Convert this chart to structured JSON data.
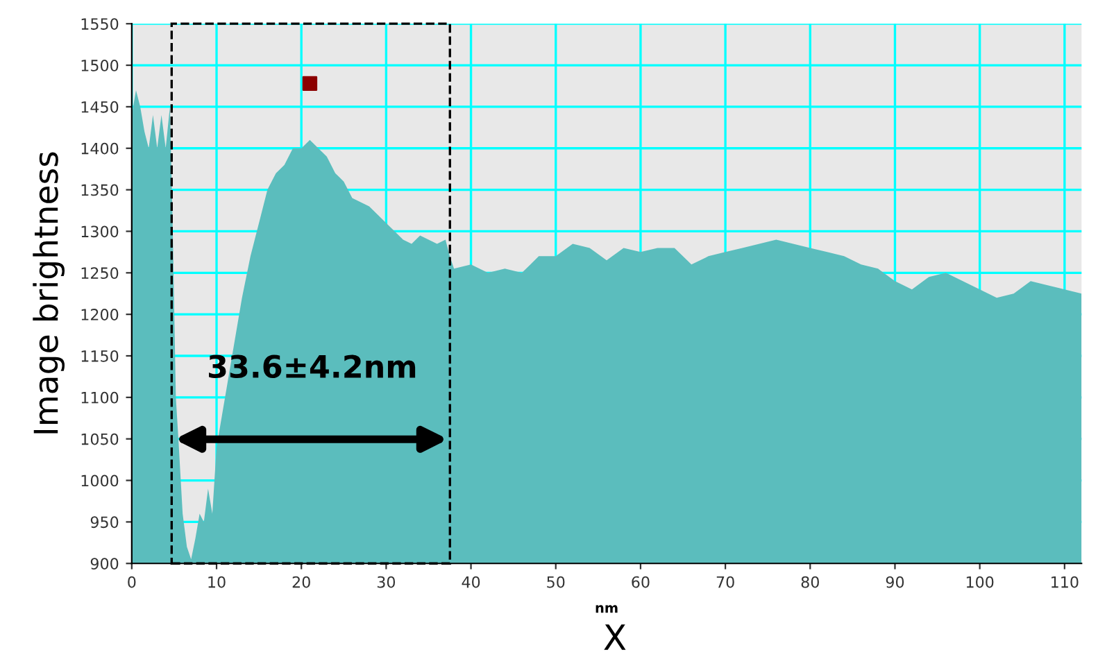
{
  "chart_data": {
    "type": "area",
    "ylabel": "Image brightness",
    "xlabel": "nm",
    "xlim": [
      0,
      112
    ],
    "xticks": [
      0,
      10,
      20,
      30,
      40,
      50,
      60,
      70,
      80,
      90,
      100,
      110
    ],
    "ylim": [
      900,
      1550
    ],
    "yticks": [
      900,
      950,
      1000,
      1050,
      1100,
      1150,
      1200,
      1250,
      1300,
      1350,
      1400,
      1450,
      1500,
      1550
    ],
    "grid": true,
    "series": [
      {
        "color": "#5bbdbd",
        "x": [
          0,
          0.5,
          1,
          1.5,
          2,
          2.5,
          3,
          3.5,
          4,
          4.5,
          4.8,
          5.2,
          5.5,
          6,
          6.5,
          7,
          7.5,
          8,
          8.5,
          9,
          9.5,
          10,
          11,
          12,
          13,
          14,
          15,
          16,
          17,
          18,
          19,
          20,
          21,
          22,
          23,
          24,
          25,
          26,
          27,
          28,
          29,
          30,
          31,
          32,
          33,
          34,
          35,
          36,
          37,
          37.5,
          38,
          40,
          42,
          44,
          46,
          48,
          50,
          52,
          54,
          56,
          58,
          60,
          62,
          64,
          66,
          68,
          70,
          72,
          74,
          76,
          78,
          80,
          82,
          84,
          86,
          88,
          90,
          92,
          94,
          96,
          98,
          100,
          102,
          104,
          106,
          108,
          110,
          112
        ],
        "values": [
          1440,
          1470,
          1450,
          1420,
          1400,
          1440,
          1400,
          1440,
          1400,
          1450,
          1320,
          1100,
          1050,
          960,
          920,
          905,
          930,
          960,
          950,
          990,
          960,
          1040,
          1100,
          1160,
          1220,
          1270,
          1310,
          1350,
          1370,
          1380,
          1400,
          1400,
          1410,
          1400,
          1390,
          1370,
          1360,
          1340,
          1335,
          1330,
          1320,
          1310,
          1300,
          1290,
          1285,
          1295,
          1290,
          1285,
          1290,
          1270,
          1255,
          1260,
          1250,
          1255,
          1250,
          1270,
          1270,
          1285,
          1280,
          1265,
          1280,
          1275,
          1280,
          1280,
          1260,
          1270,
          1275,
          1280,
          1285,
          1290,
          1285,
          1280,
          1275,
          1270,
          1260,
          1255,
          1240,
          1230,
          1245,
          1250,
          1240,
          1230,
          1220,
          1225,
          1240,
          1235,
          1230,
          1225
        ]
      },
      {
        "type": "scatter",
        "color": "#8b0000",
        "marker": "square",
        "x": [
          21
        ],
        "values": [
          1478
        ]
      }
    ],
    "annotations": [
      "33.6±4.2nm",
      "X"
    ]
  }
}
